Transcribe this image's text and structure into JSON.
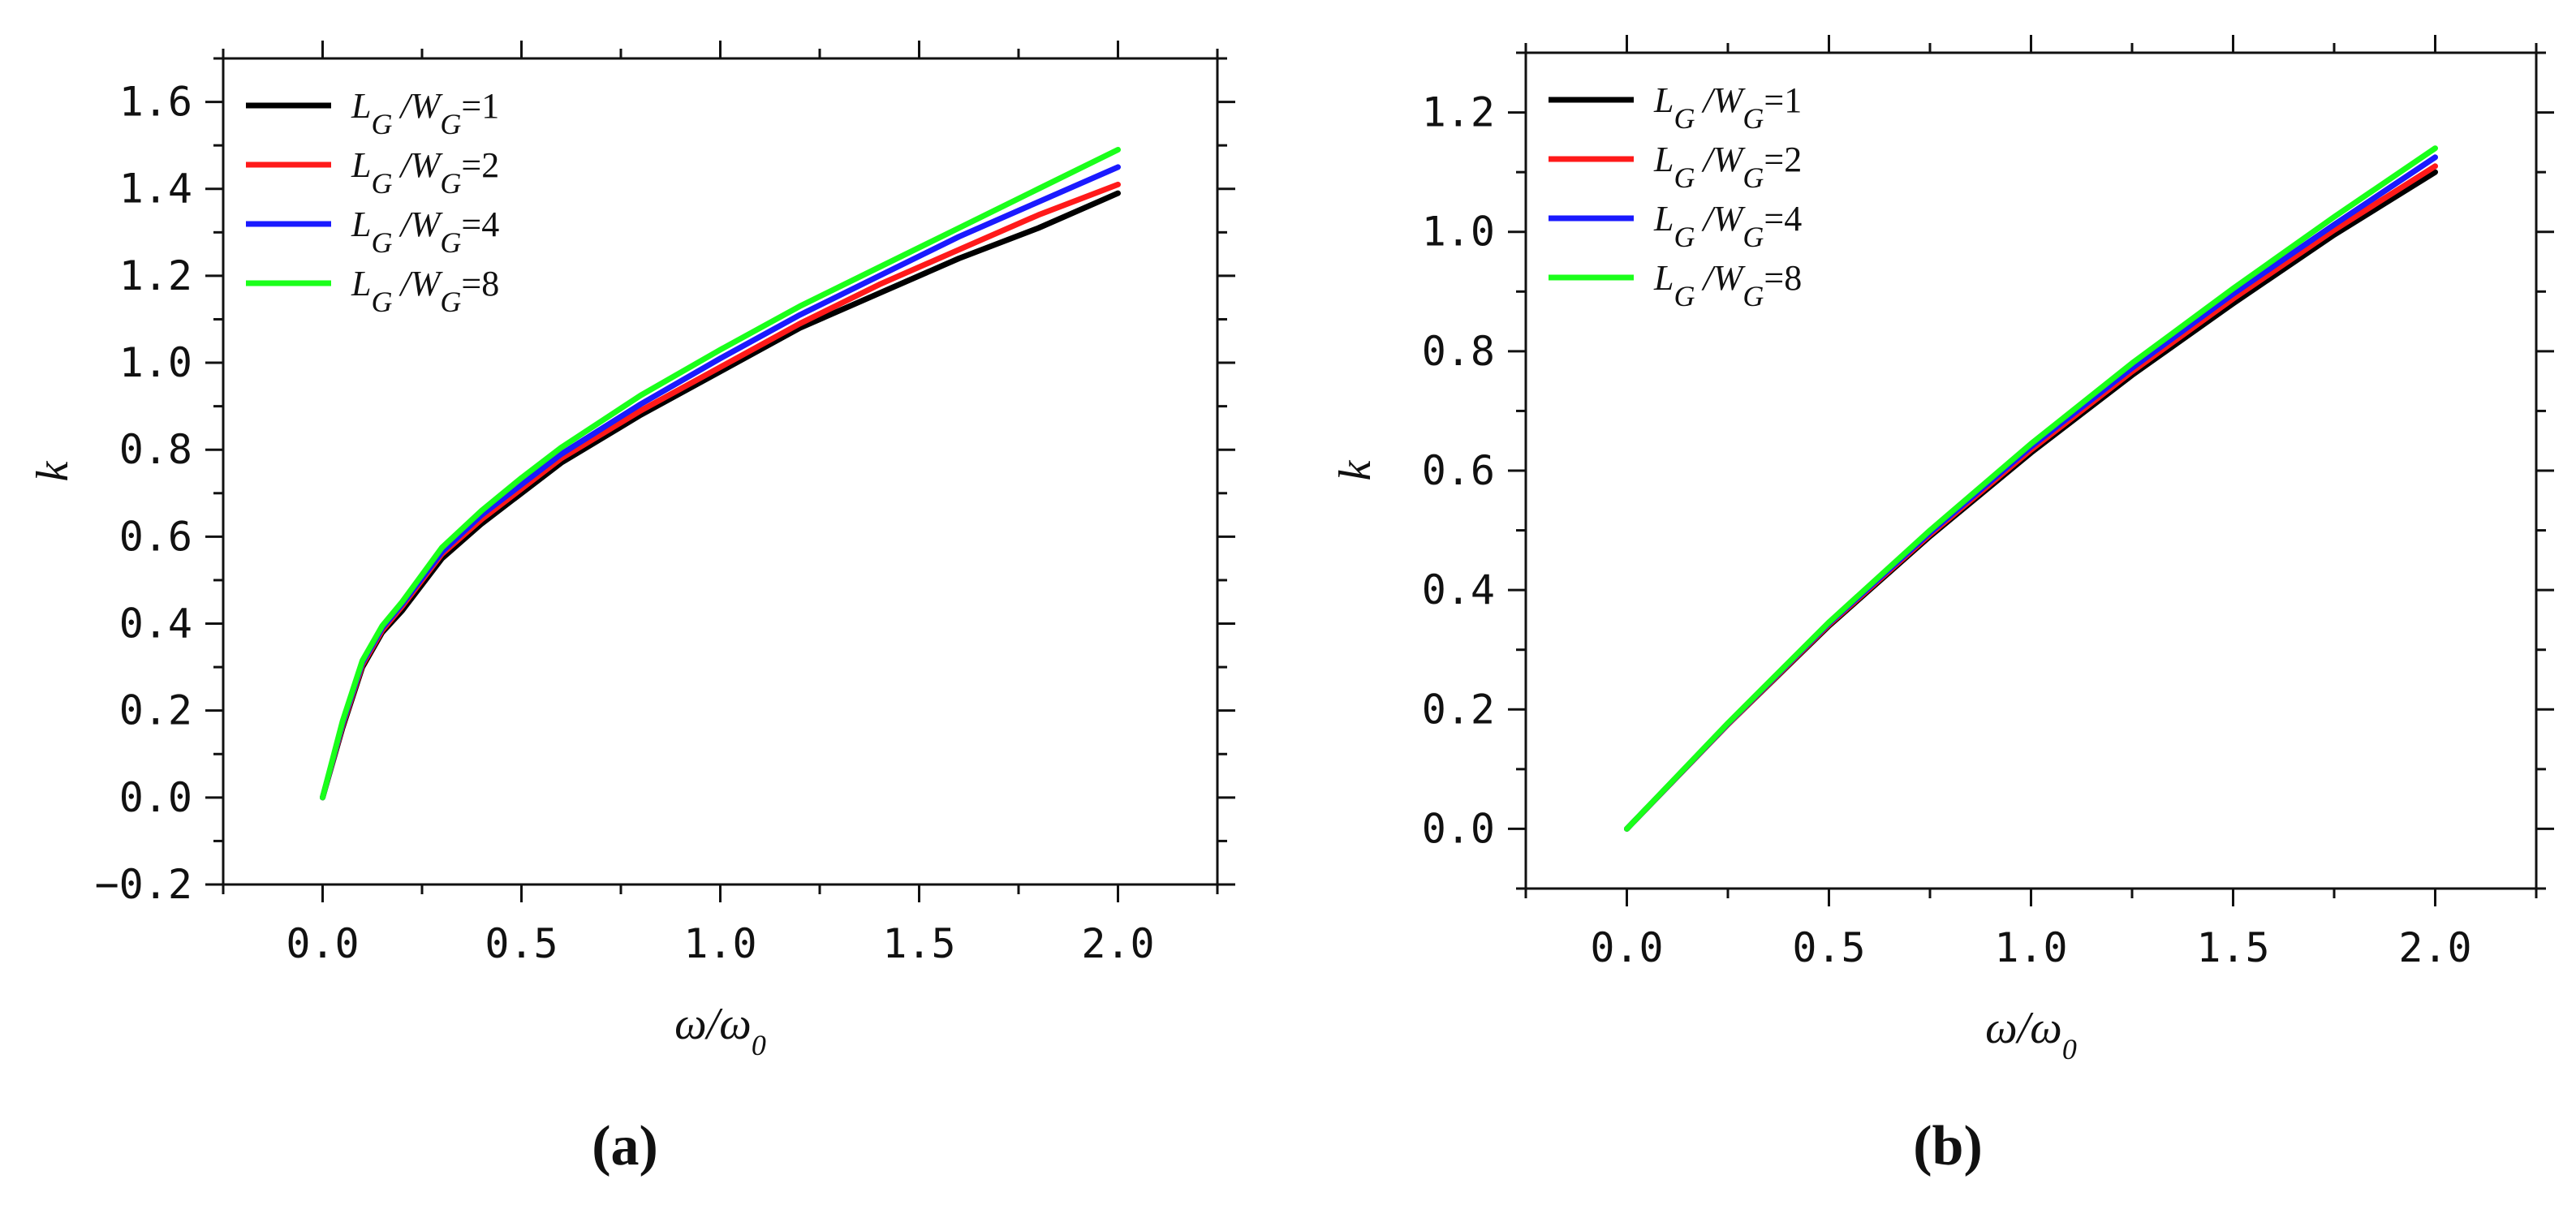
{
  "colors": {
    "black": "#000000",
    "red": "#ff1a1a",
    "blue": "#1a1aff",
    "green": "#1aff1a",
    "axis": "#111111"
  },
  "chart_data": [
    {
      "type": "line",
      "caption": "(a)",
      "xlabel": "ω/ω",
      "xlabel_sub": "0",
      "ylabel": "k",
      "xlim": [
        -0.25,
        2.25
      ],
      "ylim": [
        -0.2,
        1.7
      ],
      "xticks": [
        0.0,
        0.5,
        1.0,
        1.5,
        2.0
      ],
      "xtick_labels": [
        "0.0",
        "0.5",
        "1.0",
        "1.5",
        "2.0"
      ],
      "yticks": [
        -0.2,
        0.0,
        0.2,
        0.4,
        0.6,
        0.8,
        1.0,
        1.2,
        1.4,
        1.6
      ],
      "ytick_labels": [
        "−0.2",
        "0.0",
        "0.2",
        "0.4",
        "0.6",
        "0.8",
        "1.0",
        "1.2",
        "1.4",
        "1.6"
      ],
      "legend_position": "top-left",
      "x": [
        0.0,
        0.05,
        0.1,
        0.15,
        0.2,
        0.3,
        0.4,
        0.5,
        0.6,
        0.8,
        1.0,
        1.2,
        1.4,
        1.6,
        1.8,
        2.0
      ],
      "series": [
        {
          "name": "L_G/W_G=1",
          "legend": {
            "L": "L",
            "Lsub": "G",
            "W": "/W",
            "Wsub": "G",
            "eq": "=1"
          },
          "color": "#000000",
          "values": [
            0.0,
            0.16,
            0.3,
            0.38,
            0.43,
            0.55,
            0.63,
            0.7,
            0.77,
            0.88,
            0.98,
            1.08,
            1.16,
            1.24,
            1.31,
            1.39
          ]
        },
        {
          "name": "L_G/W_G=2",
          "legend": {
            "L": "L",
            "Lsub": "G",
            "W": "/W",
            "Wsub": "G",
            "eq": "=2"
          },
          "color": "#ff1a1a",
          "values": [
            0.0,
            0.165,
            0.305,
            0.385,
            0.44,
            0.56,
            0.64,
            0.71,
            0.78,
            0.89,
            0.99,
            1.09,
            1.18,
            1.26,
            1.34,
            1.41
          ]
        },
        {
          "name": "L_G/W_G=4",
          "legend": {
            "L": "L",
            "Lsub": "G",
            "W": "/W",
            "Wsub": "G",
            "eq": "=4"
          },
          "color": "#1a1aff",
          "values": [
            0.0,
            0.17,
            0.31,
            0.39,
            0.445,
            0.565,
            0.65,
            0.72,
            0.79,
            0.905,
            1.01,
            1.11,
            1.2,
            1.29,
            1.37,
            1.45
          ]
        },
        {
          "name": "L_G/W_G=8",
          "legend": {
            "L": "L",
            "Lsub": "G",
            "W": "/W",
            "Wsub": "G",
            "eq": "=8"
          },
          "color": "#1aff1a",
          "values": [
            0.0,
            0.175,
            0.315,
            0.395,
            0.45,
            0.575,
            0.66,
            0.735,
            0.805,
            0.925,
            1.03,
            1.13,
            1.22,
            1.31,
            1.4,
            1.49
          ]
        }
      ]
    },
    {
      "type": "line",
      "caption": "(b)",
      "xlabel": "ω/ω",
      "xlabel_sub": "0",
      "ylabel": "k",
      "xlim": [
        -0.25,
        2.25
      ],
      "ylim": [
        -0.1,
        1.3
      ],
      "xticks": [
        0.0,
        0.5,
        1.0,
        1.5,
        2.0
      ],
      "xtick_labels": [
        "0.0",
        "0.5",
        "1.0",
        "1.5",
        "2.0"
      ],
      "yticks": [
        0.0,
        0.2,
        0.4,
        0.6,
        0.8,
        1.0,
        1.2
      ],
      "ytick_labels": [
        "0.0",
        "0.2",
        "0.4",
        "0.6",
        "0.8",
        "1.0",
        "1.2"
      ],
      "legend_position": "top-left",
      "x": [
        0.0,
        0.25,
        0.5,
        0.75,
        1.0,
        1.25,
        1.5,
        1.75,
        2.0
      ],
      "series": [
        {
          "name": "L_G/W_G=1",
          "legend": {
            "L": "L",
            "Lsub": "G",
            "W": "/W",
            "Wsub": "G",
            "eq": "=1"
          },
          "color": "#000000",
          "values": [
            0.0,
            0.175,
            0.34,
            0.49,
            0.63,
            0.76,
            0.88,
            0.995,
            1.1
          ]
        },
        {
          "name": "L_G/W_G=2",
          "legend": {
            "L": "L",
            "Lsub": "G",
            "W": "/W",
            "Wsub": "G",
            "eq": "=2"
          },
          "color": "#ff1a1a",
          "values": [
            0.0,
            0.175,
            0.342,
            0.493,
            0.635,
            0.766,
            0.888,
            1.003,
            1.11
          ]
        },
        {
          "name": "L_G/W_G=4",
          "legend": {
            "L": "L",
            "Lsub": "G",
            "W": "/W",
            "Wsub": "G",
            "eq": "=4"
          },
          "color": "#1a1aff",
          "values": [
            0.0,
            0.176,
            0.344,
            0.496,
            0.64,
            0.772,
            0.896,
            1.012,
            1.125
          ]
        },
        {
          "name": "L_G/W_G=8",
          "legend": {
            "L": "L",
            "Lsub": "G",
            "W": "/W",
            "Wsub": "G",
            "eq": "=8"
          },
          "color": "#1aff1a",
          "values": [
            0.0,
            0.177,
            0.346,
            0.5,
            0.645,
            0.78,
            0.905,
            1.025,
            1.14
          ]
        }
      ]
    }
  ]
}
